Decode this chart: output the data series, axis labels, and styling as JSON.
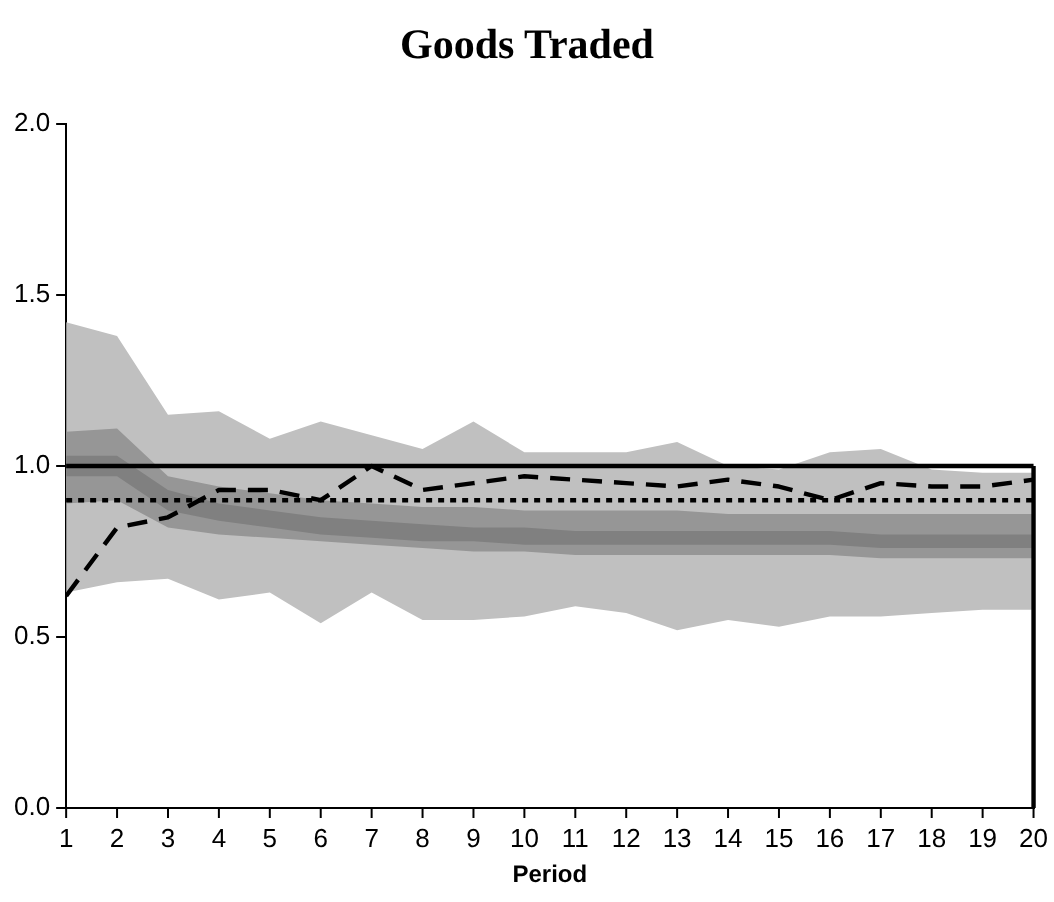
{
  "chart_data": {
    "type": "line",
    "title": "Goods Traded",
    "xlabel": "Period",
    "x": [
      1,
      2,
      3,
      4,
      5,
      6,
      7,
      8,
      9,
      10,
      11,
      12,
      13,
      14,
      15,
      16,
      17,
      18,
      19,
      20
    ],
    "xlim": [
      1,
      20
    ],
    "xticks": [
      1,
      2,
      3,
      4,
      5,
      6,
      7,
      8,
      9,
      10,
      11,
      12,
      13,
      14,
      15,
      16,
      17,
      18,
      19,
      20
    ],
    "ylim": [
      0,
      2
    ],
    "yticks": [
      {
        "value": 0,
        "label": "0.0"
      },
      {
        "value": 0.5,
        "label": "0.5"
      },
      {
        "value": 1,
        "label": "1.0"
      },
      {
        "value": 1.5,
        "label": "1.5"
      },
      {
        "value": 2,
        "label": "2.0"
      }
    ],
    "grid": false,
    "legend": false,
    "ref_lines": [
      {
        "axis": "y",
        "value": 1,
        "color": "#000000",
        "line_style": "solid"
      },
      {
        "axis": "y",
        "value": 0.9,
        "color": "#000000",
        "line_style": "dotted"
      },
      {
        "axis": "x",
        "value": 20,
        "color": "#000000",
        "line_style": "solid"
      }
    ],
    "series": [
      {
        "type": "area",
        "color": "#c0c0c0",
        "values": [
          null,
          null,
          null,
          null,
          null,
          null,
          null,
          null,
          null,
          null,
          null,
          null,
          null,
          null,
          null,
          null,
          null,
          null,
          null,
          null
        ],
        "lower": [
          0.63,
          0.66,
          0.67,
          0.61,
          0.63,
          0.54,
          0.63,
          0.55,
          0.55,
          0.56,
          0.59,
          0.57,
          0.52,
          0.55,
          0.53,
          0.56,
          0.56,
          0.57,
          0.58,
          0.58
        ],
        "upper": [
          1.42,
          1.38,
          1.15,
          1.16,
          1.08,
          1.13,
          1.09,
          1.05,
          1.13,
          1.04,
          1.04,
          1.04,
          1.07,
          1.0,
          0.99,
          1.04,
          1.05,
          0.99,
          0.98,
          0.98
        ]
      },
      {
        "type": "area",
        "color": "#969696",
        "values": [
          null,
          null,
          null,
          null,
          null,
          null,
          null,
          null,
          null,
          null,
          null,
          null,
          null,
          null,
          null,
          null,
          null,
          null,
          null,
          null
        ],
        "lower": [
          0.89,
          0.9,
          0.82,
          0.8,
          0.79,
          0.78,
          0.77,
          0.76,
          0.75,
          0.75,
          0.74,
          0.74,
          0.74,
          0.74,
          0.74,
          0.74,
          0.73,
          0.73,
          0.73,
          0.73
        ],
        "upper": [
          1.1,
          1.11,
          0.97,
          0.94,
          0.92,
          0.9,
          0.89,
          0.88,
          0.88,
          0.87,
          0.87,
          0.87,
          0.87,
          0.86,
          0.86,
          0.86,
          0.86,
          0.86,
          0.86,
          0.86
        ]
      },
      {
        "type": "area",
        "color": "#808080",
        "values": [
          null,
          null,
          null,
          null,
          null,
          null,
          null,
          null,
          null,
          null,
          null,
          null,
          null,
          null,
          null,
          null,
          null,
          null,
          null,
          null
        ],
        "lower": [
          0.97,
          0.97,
          0.87,
          0.84,
          0.82,
          0.8,
          0.79,
          0.78,
          0.78,
          0.77,
          0.77,
          0.77,
          0.77,
          0.77,
          0.77,
          0.77,
          0.76,
          0.76,
          0.76,
          0.76
        ],
        "upper": [
          1.03,
          1.03,
          0.93,
          0.89,
          0.87,
          0.85,
          0.84,
          0.83,
          0.82,
          0.82,
          0.81,
          0.81,
          0.81,
          0.81,
          0.81,
          0.81,
          0.8,
          0.8,
          0.8,
          0.8
        ]
      },
      {
        "type": "line",
        "color": "#000000",
        "line_style": "dashed",
        "values": [
          0.62,
          0.82,
          0.85,
          0.93,
          0.93,
          0.9,
          1.0,
          0.93,
          0.95,
          0.97,
          0.96,
          0.95,
          0.94,
          0.96,
          0.94,
          0.9,
          0.95,
          0.94,
          0.94,
          0.96
        ]
      }
    ]
  }
}
